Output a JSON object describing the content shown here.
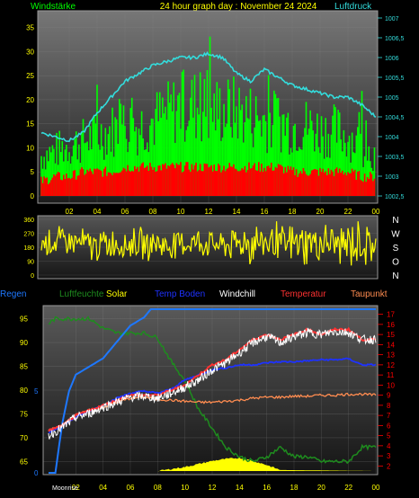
{
  "header": {
    "left": "Windstärke",
    "center": "24 hour graph day : November 24 2024",
    "right": "Luftdruck"
  },
  "legend": [
    {
      "label": "Regen",
      "color": "#1e78ff"
    },
    {
      "label": "Luftfeuchte",
      "color": "#1e8c1e"
    },
    {
      "label": "Solar",
      "color": "#ffff00"
    },
    {
      "label": "Temp Boden",
      "color": "#1e32ff"
    },
    {
      "label": "Windchill",
      "color": "#ffffff"
    },
    {
      "label": "Temperatur",
      "color": "#ff3232"
    },
    {
      "label": "Taupunkt",
      "color": "#ff8c50"
    }
  ],
  "compass": [
    "N",
    "W",
    "S",
    "O",
    "N"
  ],
  "moon_label": "Moonrise",
  "colors": {
    "background": "#000000",
    "wind_gust": "#00ff00",
    "wind_avg": "#ff0000",
    "pressure": "#33dddd",
    "wind_dir": "#ffff00",
    "left_axis": "#ffff00",
    "right_axis_top": "#33dddd",
    "right_axis_bottom": "#ff0000"
  },
  "chart_data": [
    {
      "type": "line",
      "panel": "wind_pressure",
      "x_ticks": [
        "02",
        "04",
        "06",
        "08",
        "10",
        "12",
        "14",
        "16",
        "18",
        "20",
        "22",
        "00"
      ],
      "y_left_ticks": [
        "0",
        "5",
        "10",
        "15",
        "20",
        "25",
        "30",
        "35"
      ],
      "y_right_ticks": [
        "1002,5",
        "1003",
        "1003,5",
        "1004",
        "1004,5",
        "1005",
        "1005,5",
        "1006",
        "1006,5",
        "1007"
      ],
      "ylim_left": [
        0,
        37
      ],
      "ylim_right": [
        1002.5,
        1007
      ],
      "series": [
        {
          "name": "Luftdruck",
          "axis": "right",
          "x": [
            0,
            1,
            2,
            3,
            4,
            5,
            6,
            7,
            8,
            9,
            10,
            11,
            12,
            13,
            14,
            15,
            16,
            17,
            18,
            19,
            20,
            21,
            22,
            23,
            24
          ],
          "values": [
            1004.1,
            1004.0,
            1003.9,
            1004.1,
            1004.6,
            1005.0,
            1005.4,
            1005.6,
            1005.8,
            1005.9,
            1006.0,
            1006.0,
            1006.1,
            1006.0,
            1005.6,
            1005.4,
            1005.7,
            1005.5,
            1005.3,
            1005.2,
            1005.1,
            1005.0,
            1005.0,
            1004.8,
            1004.5
          ]
        },
        {
          "name": "Windstärke",
          "axis": "left",
          "x": [
            0,
            1,
            2,
            3,
            4,
            5,
            6,
            7,
            8,
            9,
            10,
            11,
            12,
            13,
            14,
            15,
            16,
            17,
            18,
            19,
            20,
            21,
            22,
            23,
            24
          ],
          "values": [
            8,
            9,
            10,
            11,
            12,
            13,
            14,
            14,
            15,
            16,
            18,
            18,
            17,
            17,
            17,
            16,
            15,
            15,
            14,
            14,
            13,
            13,
            12,
            10,
            8
          ]
        },
        {
          "name": "Wind avg",
          "axis": "left",
          "x": [
            0,
            1,
            2,
            3,
            4,
            5,
            6,
            7,
            8,
            9,
            10,
            11,
            12,
            13,
            14,
            15,
            16,
            17,
            18,
            19,
            20,
            21,
            22,
            23,
            24
          ],
          "values": [
            3,
            4,
            4,
            5,
            5,
            5,
            6,
            6,
            6,
            6,
            6,
            6,
            6,
            6,
            6,
            6,
            6,
            6,
            5,
            5,
            5,
            5,
            5,
            4,
            4
          ]
        }
      ]
    },
    {
      "type": "scatter",
      "panel": "wind_direction",
      "x_ticks": [
        "02",
        "04",
        "06",
        "08",
        "10",
        "12",
        "14",
        "16",
        "18",
        "20",
        "22",
        "00"
      ],
      "y_ticks": [
        "0",
        "90",
        "180",
        "270",
        "360"
      ],
      "ylim": [
        0,
        360
      ],
      "series": [
        {
          "name": "Windrichtung",
          "x": [
            0,
            1,
            2,
            3,
            4,
            5,
            6,
            7,
            8,
            9,
            10,
            11,
            12,
            13,
            14,
            15,
            16,
            17,
            18,
            19,
            20,
            21,
            22,
            23,
            24
          ],
          "values": [
            200,
            210,
            220,
            200,
            190,
            210,
            200,
            195,
            205,
            190,
            200,
            210,
            205,
            190,
            200,
            210,
            220,
            200,
            190,
            210,
            220,
            200,
            190,
            200,
            210
          ]
        }
      ]
    },
    {
      "type": "line",
      "panel": "climate",
      "x_ticks": [
        "02",
        "04",
        "06",
        "08",
        "10",
        "12",
        "14",
        "16",
        "18",
        "20",
        "22",
        "00"
      ],
      "y_left_ticks": [
        "65",
        "70",
        "75",
        "80",
        "85",
        "90",
        "95"
      ],
      "y_left_extra_ticks": [
        "0",
        "5"
      ],
      "y_right_ticks": [
        "2",
        "3",
        "4",
        "5",
        "6",
        "7",
        "8",
        "9",
        "10",
        "11",
        "12",
        "13",
        "14",
        "15",
        "16",
        "17"
      ],
      "ylim_left": [
        63,
        97
      ],
      "ylim_right": [
        1.5,
        17.5
      ],
      "series": [
        {
          "name": "Luftfeuchte",
          "axis": "left",
          "x": [
            0,
            0.5,
            1,
            2,
            3,
            4,
            5,
            6,
            7,
            8,
            9,
            10,
            11,
            12,
            13,
            14,
            15,
            16,
            17,
            18,
            19,
            20,
            21,
            22,
            23,
            24
          ],
          "values": [
            94,
            95,
            95,
            95,
            95,
            93,
            92,
            92,
            92,
            91,
            86,
            82,
            76,
            72,
            68,
            66,
            65,
            66,
            68,
            66,
            66,
            65,
            65,
            65,
            68,
            68
          ]
        },
        {
          "name": "Regen",
          "axis": "left2",
          "x": [
            0,
            0.5,
            1,
            1.5,
            2,
            3,
            4,
            5,
            6,
            7,
            7.5,
            8,
            12,
            16,
            20,
            24
          ],
          "values": [
            0,
            0,
            3,
            5,
            6,
            6.5,
            7,
            8,
            9,
            9.5,
            10,
            10,
            10,
            10,
            10,
            10
          ]
        },
        {
          "name": "Temperatur",
          "axis": "right",
          "x": [
            0,
            1,
            2,
            3,
            4,
            5,
            6,
            7,
            8,
            9,
            10,
            11,
            12,
            13,
            14,
            15,
            16,
            17,
            18,
            19,
            20,
            21,
            22,
            23,
            24
          ],
          "values": [
            5.5,
            6,
            7,
            7.5,
            8,
            8.5,
            9,
            9,
            9,
            9.5,
            10,
            11,
            12,
            12.5,
            13.5,
            14.5,
            15,
            14.5,
            15,
            15.5,
            15,
            15.5,
            15.5,
            14.5,
            14.5
          ]
        },
        {
          "name": "Windchill",
          "axis": "right",
          "x": [
            0,
            1,
            2,
            3,
            4,
            5,
            6,
            7,
            8,
            9,
            10,
            11,
            12,
            13,
            14,
            15,
            16,
            17,
            18,
            19,
            20,
            21,
            22,
            23,
            24
          ],
          "values": [
            5,
            5.8,
            6.8,
            7.2,
            7.8,
            8.3,
            8.8,
            8.9,
            8.7,
            9.2,
            9.8,
            10.5,
            11.5,
            12.2,
            13.2,
            14.2,
            14.8,
            14.2,
            14.8,
            15.2,
            15,
            15.3,
            15.2,
            14.5,
            14.5
          ]
        },
        {
          "name": "Temp Boden",
          "axis": "right",
          "x": [
            0,
            1,
            2,
            3,
            4,
            5,
            6,
            7,
            8,
            9,
            10,
            11,
            12,
            13,
            14,
            15,
            16,
            17,
            18,
            19,
            20,
            21,
            22,
            23,
            24
          ],
          "values": [
            5.3,
            6,
            6.8,
            7.5,
            8,
            8.7,
            9.2,
            9.4,
            9.2,
            9.6,
            10.5,
            11,
            11.5,
            11.7,
            12,
            12,
            12.2,
            12.3,
            12.3,
            12.4,
            12.5,
            12.5,
            12.6,
            12,
            12
          ]
        },
        {
          "name": "Taupunkt",
          "axis": "right",
          "x": [
            0,
            1,
            2,
            3,
            4,
            5,
            6,
            7,
            8,
            9,
            10,
            11,
            12,
            13,
            14,
            15,
            16,
            17,
            18,
            19,
            20,
            21,
            22,
            23,
            24
          ],
          "values": [
            5.5,
            6,
            7,
            7.5,
            7.8,
            8.3,
            8.7,
            8.8,
            8.6,
            8.5,
            8.4,
            8.3,
            8.3,
            8.4,
            8.5,
            8.7,
            8.8,
            8.8,
            8.9,
            8.9,
            9,
            9,
            9.1,
            9.1,
            9
          ]
        },
        {
          "name": "Solar",
          "axis": "right",
          "x": [
            0,
            8,
            9,
            10,
            11,
            12,
            13,
            14,
            15,
            16,
            17,
            24
          ],
          "values": [
            1.5,
            1.5,
            1.7,
            1.9,
            2.2,
            2.5,
            2.7,
            2.8,
            2.5,
            2.1,
            1.6,
            1.5
          ]
        }
      ]
    }
  ]
}
